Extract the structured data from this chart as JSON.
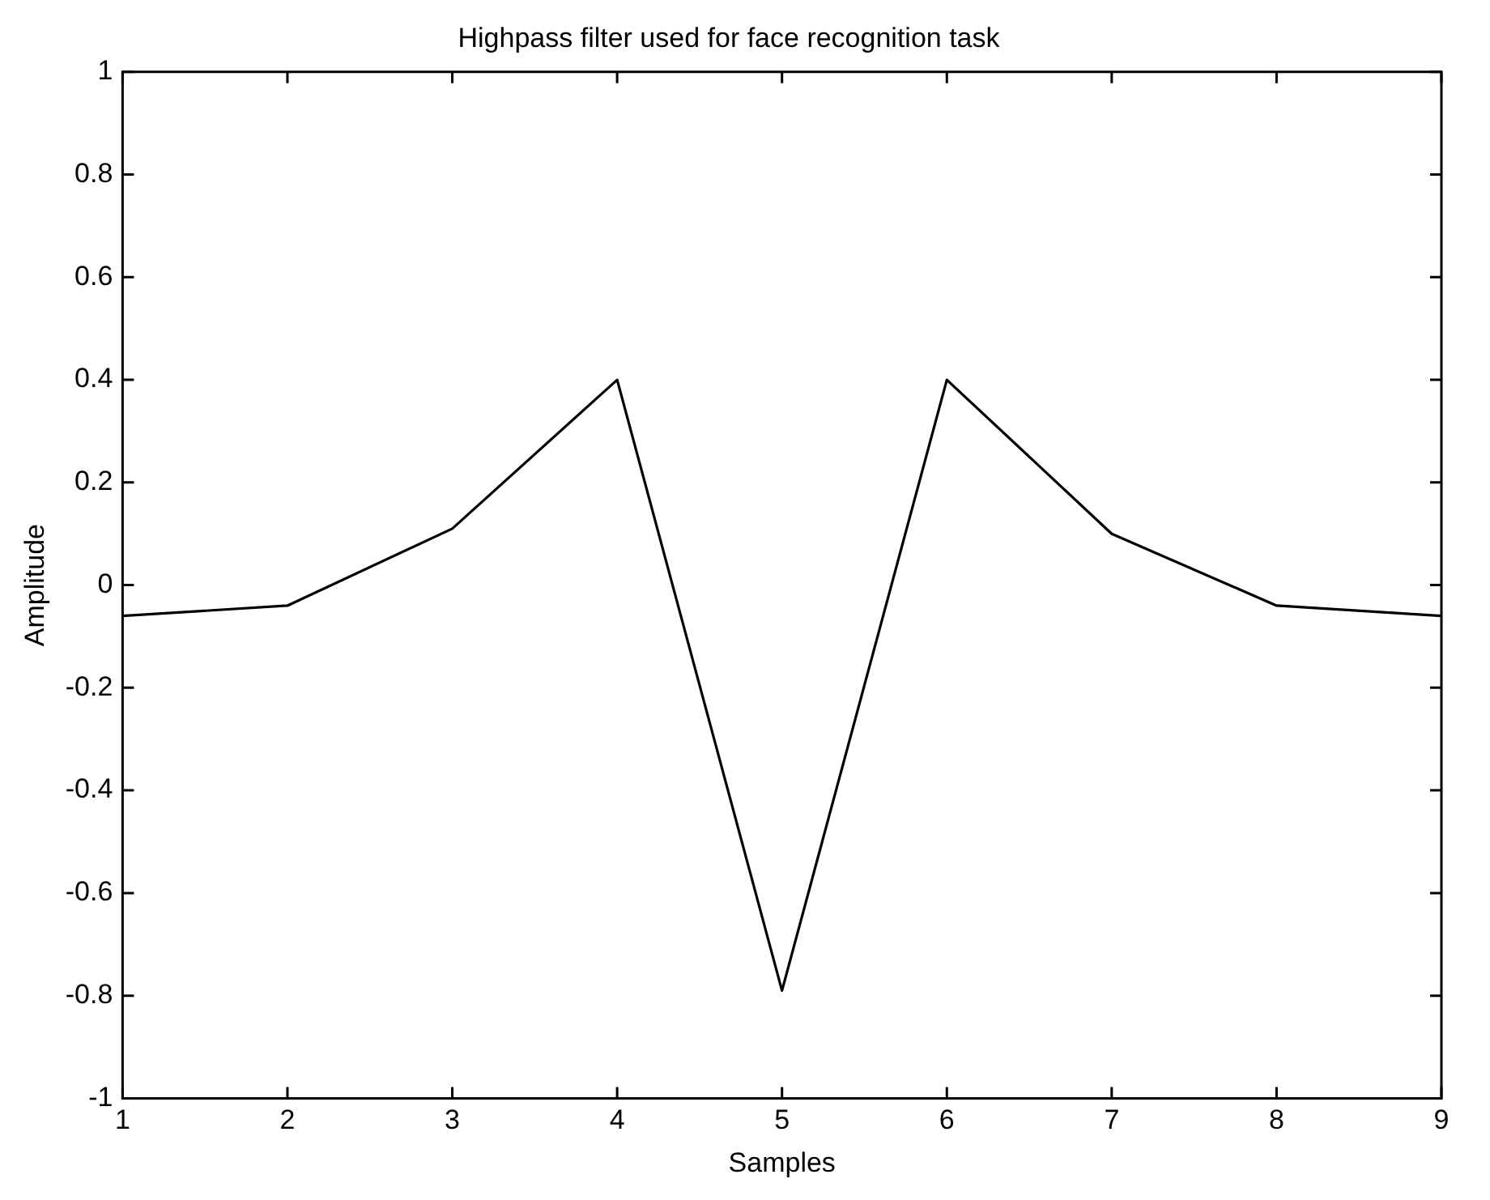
{
  "chart_data": {
    "type": "line",
    "title": "Highpass filter used for face recognition task",
    "xlabel": "Samples",
    "ylabel": "Amplitude",
    "x": [
      1,
      2,
      3,
      4,
      5,
      6,
      7,
      8,
      9
    ],
    "series": [
      {
        "color": "#000000",
        "values": [
          -0.06,
          -0.04,
          0.11,
          0.4,
          -0.79,
          0.4,
          0.1,
          -0.04,
          -0.06
        ]
      }
    ],
    "xlim": [
      1,
      9
    ],
    "xticks": [
      1,
      2,
      3,
      4,
      5,
      6,
      7,
      8,
      9
    ],
    "ylim": [
      -1,
      1
    ],
    "yticks": [
      -1,
      -0.8,
      -0.6,
      -0.4,
      -0.2,
      0,
      0.2,
      0.4,
      0.6,
      0.8,
      1
    ],
    "grid": false,
    "legend": false,
    "marker": "none",
    "line_style": "solid"
  }
}
